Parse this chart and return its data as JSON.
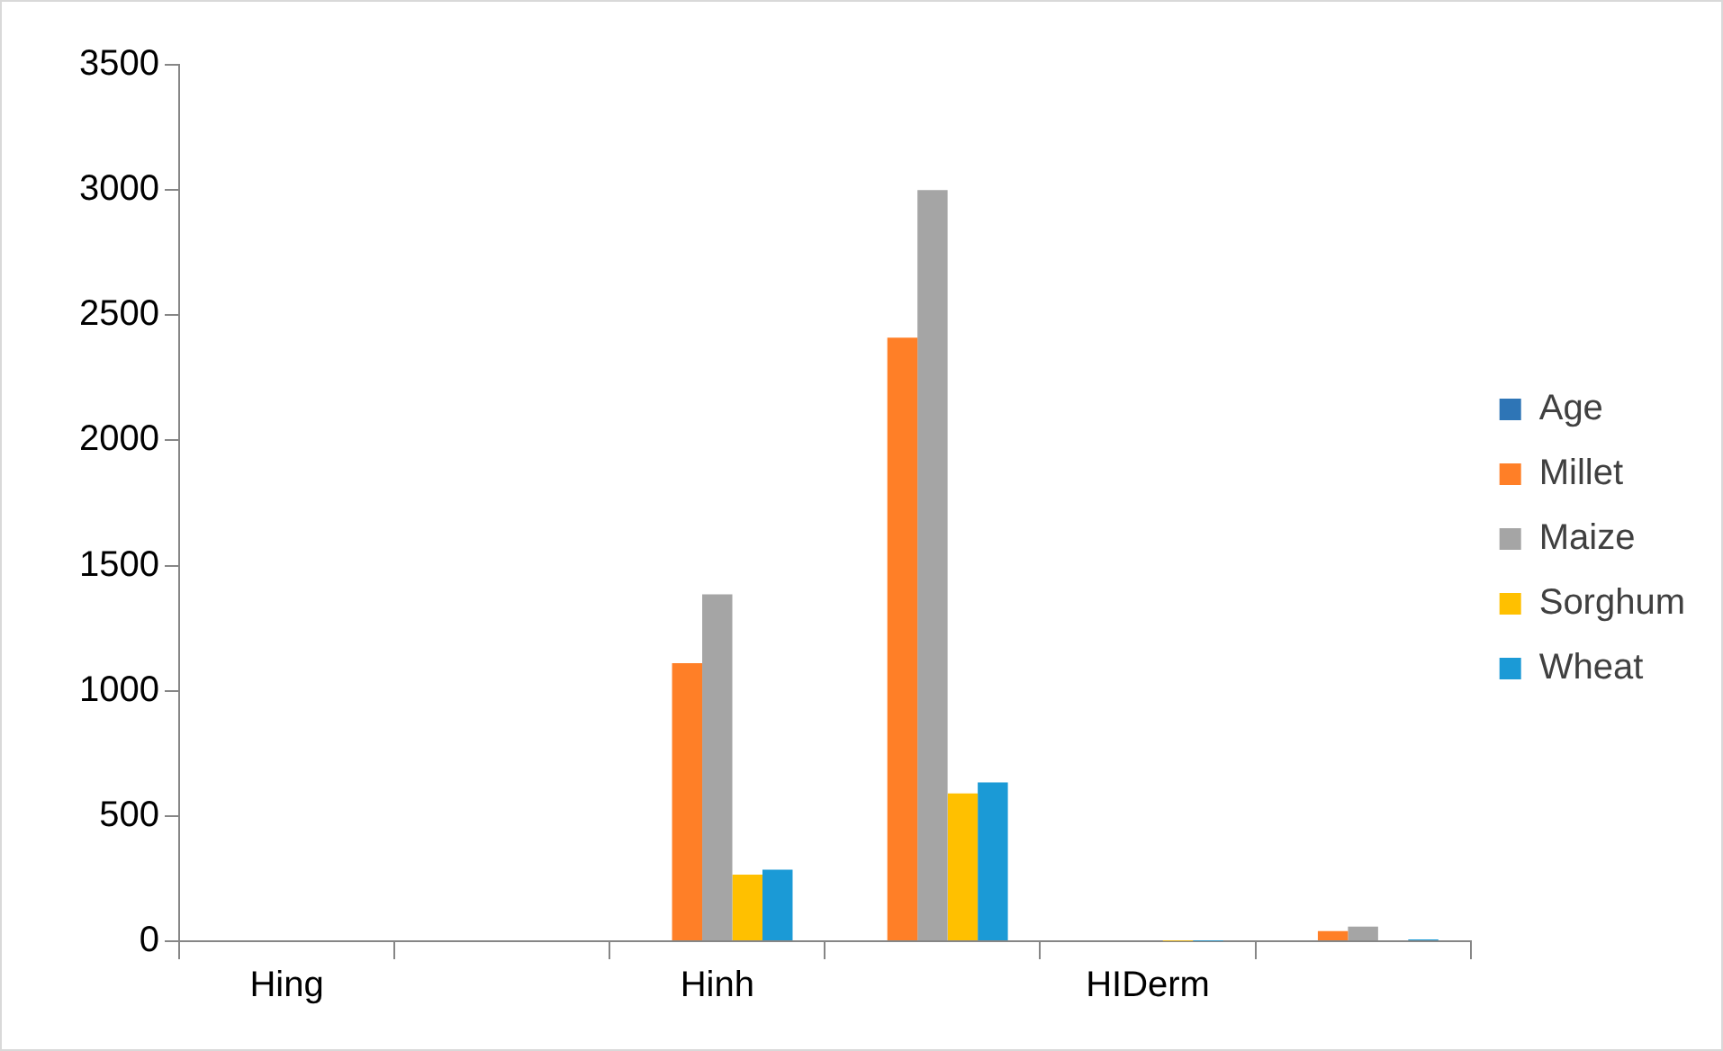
{
  "chart_data": {
    "type": "bar",
    "categories": [
      "Hing",
      null,
      "Hinh",
      null,
      "HIDerm",
      null
    ],
    "series": [
      {
        "name": "Age",
        "color": "#2e75b6",
        "values": [
          0,
          0,
          0,
          0,
          0,
          0
        ]
      },
      {
        "name": "Millet",
        "color": "#ff7f27",
        "values": [
          0,
          0,
          1110,
          2410,
          null,
          40
        ]
      },
      {
        "name": "Maize",
        "color": "#a5a5a5",
        "values": [
          0,
          0,
          1385,
          3000,
          null,
          58
        ]
      },
      {
        "name": "Sorghum",
        "color": "#ffc000",
        "values": [
          0,
          0,
          266,
          590,
          1,
          null
        ]
      },
      {
        "name": "Wheat",
        "color": "#1b9ad6",
        "values": [
          0,
          0,
          286,
          634,
          1,
          7
        ]
      }
    ],
    "ylim": [
      0,
      3500
    ],
    "yticks": [
      0,
      500,
      1000,
      1500,
      2000,
      2500,
      3000,
      3500
    ],
    "grid": false,
    "legend": "right"
  }
}
